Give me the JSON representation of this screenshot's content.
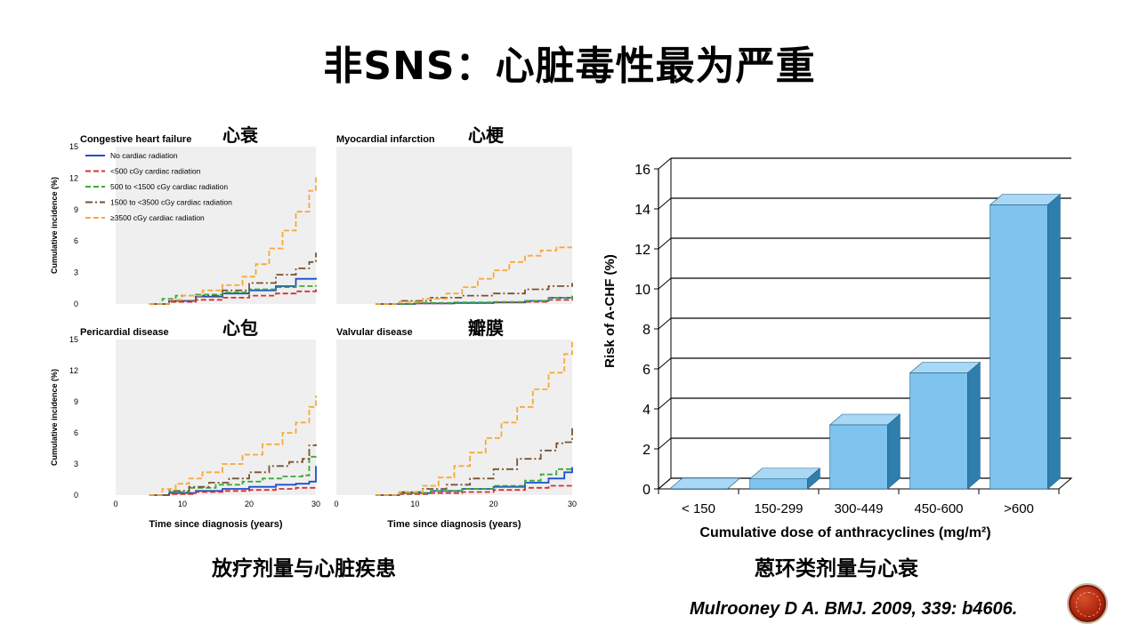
{
  "slide": {
    "title": "非SNS：心脏毒性最为严重",
    "left_caption": "放疗剂量与心脏疾患",
    "right_caption": "蒽环类剂量与心衰",
    "citation": "Mulrooney D A. BMJ. 2009, 339: b4606."
  },
  "chart_data": [
    {
      "type": "line",
      "chart": "left-grid",
      "ylabel": "Cumulative incidence (%)",
      "xlabel": "Time since diagnosis (years)",
      "xlim": [
        0,
        30
      ],
      "ylim": [
        0,
        15
      ],
      "x_ticks": [
        0,
        10,
        20,
        30
      ],
      "y_ticks": [
        0,
        3,
        6,
        9,
        12,
        15
      ],
      "grid": false,
      "legend": {
        "placement": "top-left",
        "entries": [
          {
            "label": "No cardiac radiation",
            "color": "#1a4fd1",
            "dash": "solid"
          },
          {
            "label": "<500 cGy cardiac radiation",
            "color": "#d93030",
            "dash": "dashed"
          },
          {
            "label": "500 to <1500 cGy cardiac radiation",
            "color": "#3aaa35",
            "dash": "dashed"
          },
          {
            "label": "1500 to <3500 cGy cardiac radiation",
            "color": "#7a5230",
            "dash": "dashdot"
          },
          {
            "label": "≥3500 cGy cardiac radiation",
            "color": "#f6a93a",
            "dash": "dashed"
          }
        ]
      },
      "panels": [
        {
          "title": "Congestive heart failure",
          "cn_label": "心衰",
          "series": [
            {
              "x": [
                5,
                8,
                12,
                16,
                20,
                24,
                27,
                30
              ],
              "y": [
                0,
                0.3,
                0.7,
                1.0,
                1.3,
                1.7,
                2.4,
                2.5
              ]
            },
            {
              "x": [
                5,
                8,
                12,
                16,
                20,
                24,
                27,
                30
              ],
              "y": [
                0,
                0.2,
                0.4,
                0.6,
                0.8,
                1.0,
                1.2,
                1.5
              ]
            },
            {
              "x": [
                5,
                7,
                9,
                12,
                16,
                20,
                24,
                27,
                30
              ],
              "y": [
                0,
                0.5,
                0.8,
                0.9,
                1.1,
                1.4,
                1.6,
                1.7,
                1.8
              ]
            },
            {
              "x": [
                5,
                8,
                12,
                16,
                20,
                24,
                27,
                29,
                30
              ],
              "y": [
                0,
                0.3,
                0.8,
                1.3,
                2.0,
                2.8,
                3.4,
                4.0,
                4.9
              ]
            },
            {
              "x": [
                5,
                8,
                10,
                13,
                16,
                19,
                21,
                23,
                25,
                27,
                29,
                30
              ],
              "y": [
                0,
                0.4,
                0.8,
                1.3,
                1.8,
                2.6,
                3.8,
                5.3,
                7.0,
                8.8,
                10.8,
                12.2
              ]
            }
          ]
        },
        {
          "title": "Myocardial infarction",
          "cn_label": "心梗",
          "series": [
            {
              "x": [
                5,
                10,
                15,
                20,
                24,
                27,
                30
              ],
              "y": [
                0,
                0.05,
                0.1,
                0.15,
                0.3,
                0.6,
                0.7
              ]
            },
            {
              "x": [
                5,
                10,
                15,
                20,
                24,
                27,
                30
              ],
              "y": [
                0,
                0.05,
                0.1,
                0.15,
                0.2,
                0.4,
                0.5
              ]
            },
            {
              "x": [
                5,
                10,
                15,
                20,
                24,
                27,
                30
              ],
              "y": [
                0,
                0.1,
                0.15,
                0.2,
                0.3,
                0.6,
                0.8
              ]
            },
            {
              "x": [
                5,
                8,
                12,
                16,
                20,
                24,
                27,
                30
              ],
              "y": [
                0,
                0.3,
                0.6,
                0.8,
                1.0,
                1.4,
                1.7,
                2.0
              ]
            },
            {
              "x": [
                5,
                8,
                11,
                14,
                16,
                18,
                20,
                22,
                24,
                26,
                28,
                30
              ],
              "y": [
                0,
                0.2,
                0.5,
                1.0,
                1.6,
                2.4,
                3.2,
                4.0,
                4.6,
                5.1,
                5.4,
                5.4
              ]
            }
          ]
        },
        {
          "title": "Pericardial disease",
          "cn_label": "心包",
          "series": [
            {
              "x": [
                5,
                8,
                12,
                16,
                20,
                24,
                27,
                29,
                30
              ],
              "y": [
                0,
                0.2,
                0.4,
                0.6,
                0.8,
                1.0,
                1.1,
                1.3,
                2.8
              ]
            },
            {
              "x": [
                5,
                8,
                12,
                16,
                20,
                24,
                27,
                30
              ],
              "y": [
                0,
                0.1,
                0.3,
                0.4,
                0.5,
                0.6,
                0.7,
                0.8
              ]
            },
            {
              "x": [
                5,
                8,
                11,
                15,
                19,
                22,
                25,
                28,
                29,
                30
              ],
              "y": [
                0,
                0.3,
                0.7,
                1.0,
                1.3,
                1.6,
                1.8,
                1.9,
                3.7,
                3.8
              ]
            },
            {
              "x": [
                5,
                8,
                11,
                14,
                17,
                20,
                23,
                26,
                28,
                29,
                30
              ],
              "y": [
                0,
                0.4,
                0.8,
                1.2,
                1.6,
                2.2,
                2.8,
                3.2,
                3.5,
                4.8,
                4.9
              ]
            },
            {
              "x": [
                5,
                7,
                9,
                11,
                13,
                16,
                19,
                22,
                25,
                27,
                29,
                30
              ],
              "y": [
                0,
                0.6,
                1.1,
                1.6,
                2.2,
                3.0,
                3.9,
                4.9,
                6.0,
                7.0,
                8.5,
                9.6
              ]
            }
          ]
        },
        {
          "title": "Valvular disease",
          "cn_label": "瓣膜",
          "series": [
            {
              "x": [
                5,
                8,
                12,
                16,
                20,
                24,
                27,
                29,
                30
              ],
              "y": [
                0,
                0.2,
                0.4,
                0.6,
                0.8,
                1.2,
                1.6,
                2.2,
                2.7
              ]
            },
            {
              "x": [
                5,
                8,
                12,
                16,
                20,
                24,
                27,
                30
              ],
              "y": [
                0,
                0.1,
                0.2,
                0.3,
                0.5,
                0.7,
                0.9,
                1.0
              ]
            },
            {
              "x": [
                5,
                8,
                12,
                16,
                20,
                24,
                26,
                28,
                30
              ],
              "y": [
                0,
                0.2,
                0.4,
                0.6,
                0.9,
                1.4,
                2.0,
                2.5,
                2.6
              ]
            },
            {
              "x": [
                5,
                8,
                11,
                14,
                17,
                20,
                23,
                26,
                28,
                29,
                30
              ],
              "y": [
                0,
                0.3,
                0.6,
                1.0,
                1.6,
                2.5,
                3.5,
                4.3,
                5.0,
                5.1,
                6.7
              ]
            },
            {
              "x": [
                5,
                8,
                11,
                13,
                15,
                17,
                19,
                21,
                23,
                25,
                27,
                29,
                30
              ],
              "y": [
                0,
                0.3,
                0.9,
                1.7,
                2.8,
                4.1,
                5.5,
                7.0,
                8.5,
                10.2,
                11.8,
                13.6,
                14.9
              ]
            }
          ]
        }
      ]
    },
    {
      "type": "bar",
      "chart": "right-bar",
      "categories": [
        "< 150",
        "150-299",
        "300-449",
        "450-600",
        ">600"
      ],
      "values": [
        0,
        0.5,
        3.2,
        5.8,
        14.2
      ],
      "ylabel": "Risk of A-CHF (%)",
      "xlabel": "Cumulative dose of anthracyclines (mg/m²)",
      "ylim": [
        0,
        16
      ],
      "y_ticks": [
        0,
        2,
        4,
        6,
        8,
        10,
        12,
        14,
        16
      ],
      "grid": true,
      "colors": {
        "front": "#7fc3ef",
        "side": "#2e7fae",
        "top": "#a9d8f6"
      }
    }
  ]
}
